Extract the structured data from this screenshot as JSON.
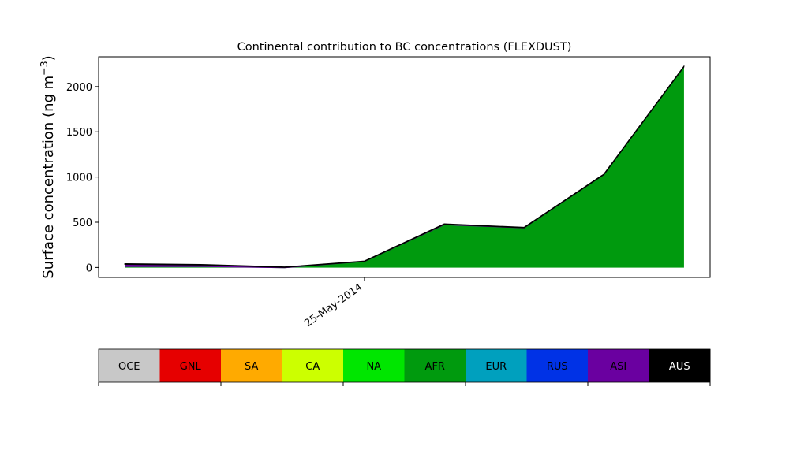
{
  "chart_data": {
    "type": "area",
    "title": "Continental contribution to BC concentrations (FLEXDUST)",
    "ylabel_main": "Surface concentration (ng m",
    "ylabel_exp": "−3",
    "ylabel_close": ")",
    "x": [
      -3,
      -2,
      -1,
      0,
      1,
      2,
      3,
      4
    ],
    "ylim": [
      -110,
      2330
    ],
    "xlim": [
      -3.33,
      4.33
    ],
    "y_ticks": [
      0,
      500,
      1000,
      1500,
      2000
    ],
    "x_tick": {
      "value": 0,
      "label": "25-May-2014"
    },
    "grid": false,
    "series": [
      {
        "name": "AFR",
        "color": "#009a0e",
        "values": [
          8,
          8,
          -5,
          65,
          470,
          435,
          1025,
          2215
        ]
      },
      {
        "name": "ASI",
        "color": "#6a00a0",
        "values": [
          28,
          20,
          7,
          3,
          8,
          5,
          4,
          3
        ]
      },
      {
        "name": "AUS",
        "color": "#000000",
        "values": [
          4,
          3,
          2,
          2,
          2,
          2,
          2,
          2
        ]
      }
    ]
  },
  "legend": {
    "items": [
      {
        "label": "OCE",
        "color": "#c8c8c8",
        "text_color": "#000000"
      },
      {
        "label": "GNL",
        "color": "#e60000",
        "text_color": "#000000"
      },
      {
        "label": "SA",
        "color": "#ffaa00",
        "text_color": "#000000"
      },
      {
        "label": "CA",
        "color": "#ccff00",
        "text_color": "#000000"
      },
      {
        "label": "NA",
        "color": "#00e600",
        "text_color": "#000000"
      },
      {
        "label": "AFR",
        "color": "#009a0e",
        "text_color": "#000000"
      },
      {
        "label": "EUR",
        "color": "#00a0be",
        "text_color": "#000000"
      },
      {
        "label": "RUS",
        "color": "#0032e6",
        "text_color": "#000000"
      },
      {
        "label": "ASI",
        "color": "#6a00a0",
        "text_color": "#000000"
      },
      {
        "label": "AUS",
        "color": "#000000",
        "text_color": "#ffffff"
      }
    ]
  }
}
